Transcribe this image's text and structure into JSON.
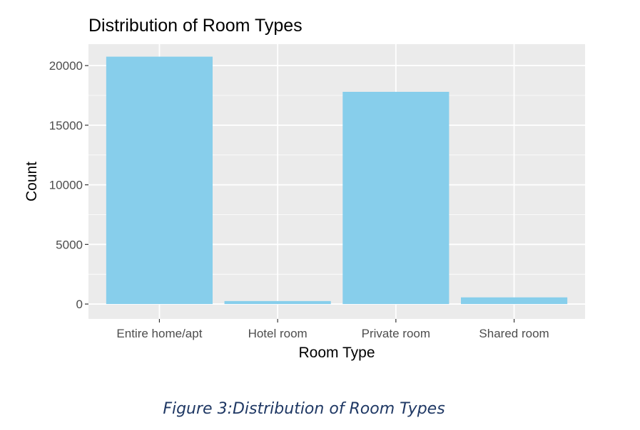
{
  "chart_data": {
    "type": "bar",
    "title": "Distribution of Room Types",
    "xlabel": "Room Type",
    "ylabel": "Count",
    "categories": [
      "Entire home/apt",
      "Hotel room",
      "Private room",
      "Shared room"
    ],
    "values": [
      20750,
      250,
      17800,
      560
    ],
    "ylim": [
      -1250,
      21800
    ],
    "yticks": [
      0,
      5000,
      10000,
      15000,
      20000
    ],
    "grid": true,
    "legend": "none",
    "colors": {
      "bar": "#87ceeb",
      "panel": "#ebebeb",
      "grid": "#ffffff",
      "tick": "#333333"
    }
  },
  "caption": "Figure 3:Distribution of Room Types"
}
